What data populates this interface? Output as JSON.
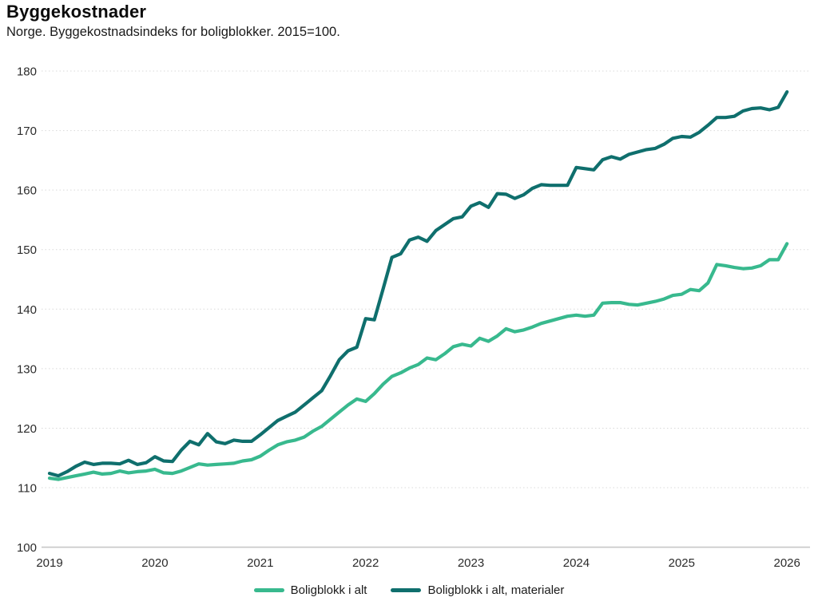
{
  "header": {
    "title": "Byggekostnader",
    "subtitle": "Norge. Byggekostnadsindeks for boligblokker. 2015=100."
  },
  "chart_data": {
    "type": "line",
    "title": "Byggekostnader",
    "subtitle": "Norge. Byggekostnadsindeks for boligblokker. 2015=100.",
    "x_ticks": [
      2019,
      2020,
      2021,
      2022,
      2023,
      2024,
      2025,
      2026
    ],
    "y_ticks": [
      100,
      110,
      120,
      130,
      140,
      150,
      160,
      170,
      180
    ],
    "ylim": [
      100,
      180
    ],
    "x_range": [
      "2019-01",
      "2026-01"
    ],
    "frequency": "monthly",
    "grid": "dotted horizontal, solid baseline at 100",
    "legend_position": "bottom-center",
    "series": [
      {
        "name": "Boligblokk i alt",
        "color": "#38b98e",
        "values": [
          111.6,
          111.4,
          111.7,
          112.0,
          112.3,
          112.6,
          112.3,
          112.4,
          112.8,
          112.5,
          112.7,
          112.8,
          113.1,
          112.5,
          112.4,
          112.8,
          113.4,
          114.0,
          113.8,
          113.9,
          114.0,
          114.1,
          114.5,
          114.7,
          115.3,
          116.3,
          117.2,
          117.7,
          118.0,
          118.5,
          119.5,
          120.3,
          121.5,
          122.7,
          123.9,
          124.9,
          124.5,
          125.8,
          127.4,
          128.7,
          129.3,
          130.1,
          130.7,
          131.8,
          131.5,
          132.5,
          133.7,
          134.1,
          133.8,
          135.1,
          134.6,
          135.5,
          136.7,
          136.2,
          136.5,
          137.0,
          137.6,
          138.0,
          138.4,
          138.8,
          139.0,
          138.8,
          139.0,
          141.0,
          141.1,
          141.1,
          140.8,
          140.7,
          141.0,
          141.3,
          141.7,
          142.3,
          142.5,
          143.3,
          143.1,
          144.4,
          147.5,
          147.3,
          147.0,
          146.8,
          146.9,
          147.3,
          148.3,
          148.3,
          151.0
        ]
      },
      {
        "name": "Boligblokk i alt, materialer",
        "color": "#0f6f6d",
        "values": [
          112.4,
          112.0,
          112.7,
          113.6,
          114.3,
          113.9,
          114.1,
          114.1,
          114.0,
          114.6,
          113.9,
          114.2,
          115.2,
          114.5,
          114.4,
          116.3,
          117.8,
          117.2,
          119.1,
          117.7,
          117.4,
          118.0,
          117.8,
          117.8,
          118.9,
          120.1,
          121.3,
          122.0,
          122.7,
          123.9,
          125.1,
          126.3,
          128.8,
          131.5,
          133.0,
          133.6,
          138.4,
          138.2,
          143.4,
          148.7,
          149.3,
          151.6,
          152.1,
          151.4,
          153.2,
          154.2,
          155.2,
          155.5,
          157.3,
          157.9,
          157.1,
          159.4,
          159.3,
          158.6,
          159.2,
          160.3,
          160.9,
          160.8,
          160.8,
          160.8,
          163.8,
          163.6,
          163.4,
          165.1,
          165.6,
          165.2,
          166.0,
          166.4,
          166.8,
          167.0,
          167.7,
          168.7,
          169.0,
          168.9,
          169.7,
          170.9,
          172.2,
          172.2,
          172.4,
          173.3,
          173.7,
          173.8,
          173.5,
          173.9,
          176.5
        ]
      }
    ]
  }
}
